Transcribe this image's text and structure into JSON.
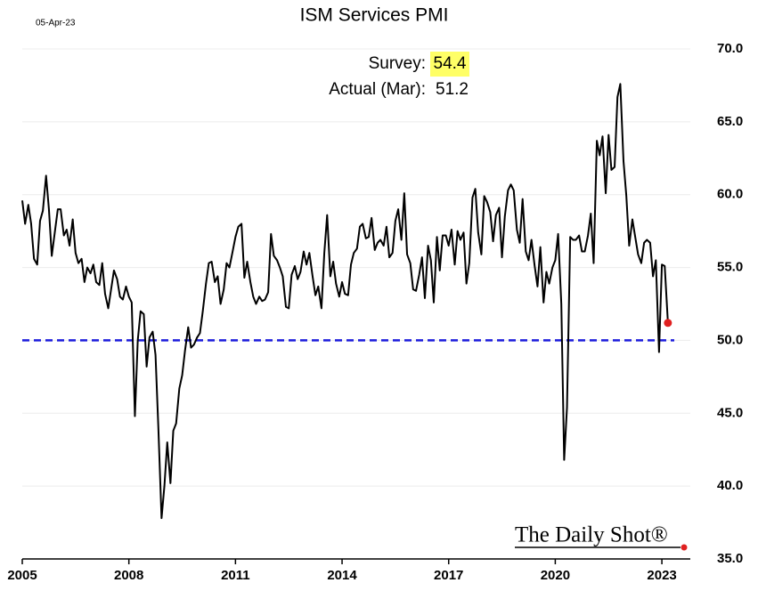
{
  "chart_data": {
    "type": "line",
    "title": "ISM Services PMI",
    "date": "05-Apr-23",
    "annotations": {
      "survey_label": "Survey:",
      "survey_value": "54.4",
      "actual_label": "Actual (Mar):",
      "actual_value": "51.2",
      "brand": "The Daily Shot®"
    },
    "xlim": [
      2005,
      2023.8
    ],
    "xticks": [
      2005,
      2008,
      2011,
      2014,
      2017,
      2020,
      2023
    ],
    "ylim": [
      35,
      70
    ],
    "yticks": [
      {
        "value": 35,
        "label": "35.0"
      },
      {
        "value": 40,
        "label": "40.0"
      },
      {
        "value": 45,
        "label": "45.0"
      },
      {
        "value": 50,
        "label": "50.0"
      },
      {
        "value": 55,
        "label": "55.0"
      },
      {
        "value": 60,
        "label": "60.0"
      },
      {
        "value": 65,
        "label": "65.0"
      },
      {
        "value": 70,
        "label": "70.0"
      }
    ],
    "grid": true,
    "hline": {
      "value": 50,
      "color": "#1c1cdc"
    },
    "last_point_color": "#e02020",
    "x": [
      2005.0,
      2005.08,
      2005.17,
      2005.25,
      2005.33,
      2005.42,
      2005.5,
      2005.58,
      2005.67,
      2005.75,
      2005.83,
      2005.92,
      2006.0,
      2006.08,
      2006.17,
      2006.25,
      2006.33,
      2006.42,
      2006.5,
      2006.58,
      2006.67,
      2006.75,
      2006.83,
      2006.92,
      2007.0,
      2007.08,
      2007.17,
      2007.25,
      2007.33,
      2007.42,
      2007.5,
      2007.58,
      2007.67,
      2007.75,
      2007.83,
      2007.92,
      2008.0,
      2008.08,
      2008.17,
      2008.25,
      2008.33,
      2008.42,
      2008.5,
      2008.58,
      2008.67,
      2008.75,
      2008.83,
      2008.92,
      2009.0,
      2009.08,
      2009.17,
      2009.25,
      2009.33,
      2009.42,
      2009.5,
      2009.58,
      2009.67,
      2009.75,
      2009.83,
      2009.92,
      2010.0,
      2010.08,
      2010.17,
      2010.25,
      2010.33,
      2010.42,
      2010.5,
      2010.58,
      2010.67,
      2010.75,
      2010.83,
      2010.92,
      2011.0,
      2011.08,
      2011.17,
      2011.25,
      2011.33,
      2011.42,
      2011.5,
      2011.58,
      2011.67,
      2011.75,
      2011.83,
      2011.92,
      2012.0,
      2012.08,
      2012.17,
      2012.25,
      2012.33,
      2012.42,
      2012.5,
      2012.58,
      2012.67,
      2012.75,
      2012.83,
      2012.92,
      2013.0,
      2013.08,
      2013.17,
      2013.25,
      2013.33,
      2013.42,
      2013.5,
      2013.58,
      2013.67,
      2013.75,
      2013.83,
      2013.92,
      2014.0,
      2014.08,
      2014.17,
      2014.25,
      2014.33,
      2014.42,
      2014.5,
      2014.58,
      2014.67,
      2014.75,
      2014.83,
      2014.92,
      2015.0,
      2015.08,
      2015.17,
      2015.25,
      2015.33,
      2015.42,
      2015.5,
      2015.58,
      2015.67,
      2015.75,
      2015.83,
      2015.92,
      2016.0,
      2016.08,
      2016.17,
      2016.25,
      2016.33,
      2016.42,
      2016.5,
      2016.58,
      2016.67,
      2016.75,
      2016.83,
      2016.92,
      2017.0,
      2017.08,
      2017.17,
      2017.25,
      2017.33,
      2017.42,
      2017.5,
      2017.58,
      2017.67,
      2017.75,
      2017.83,
      2017.92,
      2018.0,
      2018.08,
      2018.17,
      2018.25,
      2018.33,
      2018.42,
      2018.5,
      2018.58,
      2018.67,
      2018.75,
      2018.83,
      2018.92,
      2019.0,
      2019.08,
      2019.17,
      2019.25,
      2019.33,
      2019.42,
      2019.5,
      2019.58,
      2019.67,
      2019.75,
      2019.83,
      2019.92,
      2020.0,
      2020.08,
      2020.17,
      2020.25,
      2020.33,
      2020.42,
      2020.5,
      2020.58,
      2020.67,
      2020.75,
      2020.83,
      2020.92,
      2021.0,
      2021.08,
      2021.17,
      2021.25,
      2021.33,
      2021.42,
      2021.5,
      2021.58,
      2021.67,
      2021.75,
      2021.83,
      2021.92,
      2022.0,
      2022.08,
      2022.17,
      2022.25,
      2022.33,
      2022.42,
      2022.5,
      2022.58,
      2022.67,
      2022.75,
      2022.83,
      2022.92,
      2023.0,
      2023.08,
      2023.17
    ],
    "series": [
      {
        "color": "#000000",
        "values": [
          59.6,
          58.0,
          59.3,
          58.0,
          55.6,
          55.2,
          58.2,
          58.9,
          61.3,
          59.0,
          55.8,
          57.5,
          59.0,
          59.0,
          57.2,
          57.6,
          56.5,
          58.3,
          56.0,
          55.3,
          55.6,
          54.0,
          55.0,
          54.6,
          55.2,
          54.0,
          53.8,
          55.3,
          53.2,
          52.2,
          53.5,
          54.8,
          54.2,
          53.0,
          52.8,
          53.7,
          53.0,
          52.6,
          44.8,
          50.0,
          52.0,
          51.8,
          48.2,
          50.2,
          50.6,
          49.0,
          44.0,
          37.8,
          40.0,
          43.0,
          40.2,
          43.8,
          44.3,
          46.7,
          47.6,
          49.3,
          50.9,
          49.5,
          49.7,
          50.2,
          50.5,
          52.0,
          53.9,
          55.3,
          55.4,
          54.0,
          54.4,
          52.5,
          53.5,
          55.3,
          55.0,
          56.1,
          57.1,
          57.8,
          58.0,
          54.3,
          55.4,
          54.0,
          53.0,
          52.5,
          53.0,
          52.7,
          52.8,
          53.3,
          57.3,
          55.8,
          55.5,
          55.0,
          54.4,
          52.3,
          52.2,
          54.5,
          55.1,
          54.2,
          54.7,
          56.1,
          55.2,
          56.0,
          54.4,
          53.1,
          53.7,
          52.2,
          56.0,
          58.6,
          54.4,
          55.4,
          53.9,
          53.0,
          54.0,
          53.2,
          53.1,
          55.2,
          56.0,
          56.3,
          57.8,
          58.0,
          57.0,
          57.1,
          58.4,
          56.2,
          56.7,
          56.9,
          56.5,
          57.8,
          55.7,
          56.0,
          58.2,
          59.0,
          56.9,
          60.1,
          55.9,
          55.3,
          53.5,
          53.4,
          54.5,
          55.7,
          52.9,
          56.5,
          55.5,
          52.6,
          57.1,
          54.8,
          57.2,
          57.2,
          56.5,
          57.6,
          55.2,
          57.5,
          56.9,
          57.4,
          53.9,
          55.3,
          59.8,
          60.4,
          57.4,
          55.9,
          59.9,
          59.5,
          58.8,
          56.8,
          58.6,
          59.1,
          55.7,
          58.5,
          60.3,
          60.7,
          60.3,
          57.6,
          56.7,
          59.7,
          56.1,
          55.5,
          56.9,
          55.1,
          53.7,
          56.4,
          52.6,
          54.7,
          53.9,
          55.0,
          55.5,
          57.3,
          52.5,
          41.8,
          45.4,
          57.1,
          56.9,
          56.9,
          57.2,
          56.1,
          56.1,
          57.2,
          58.7,
          55.3,
          63.7,
          62.7,
          64.0,
          60.1,
          64.1,
          61.7,
          61.9,
          66.7,
          67.6,
          62.3,
          59.9,
          56.5,
          58.3,
          57.1,
          55.9,
          55.3,
          56.7,
          56.9,
          56.7,
          54.4,
          55.5,
          49.2,
          55.2,
          55.1,
          51.2
        ]
      }
    ]
  }
}
